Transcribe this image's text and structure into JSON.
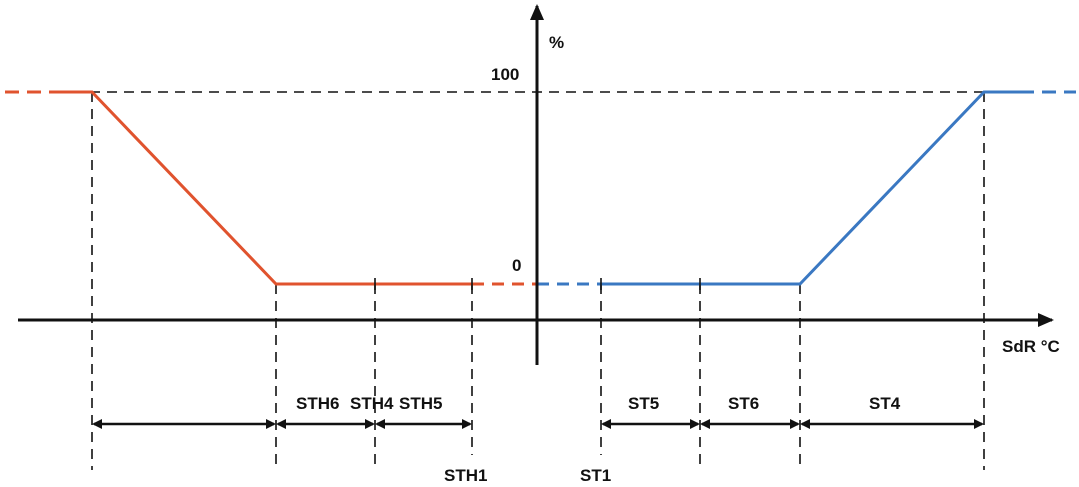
{
  "labels": {
    "y_unit": "%",
    "y_100": "100",
    "y_0": "0",
    "x_unit": "SdR °C",
    "sth6": "STH6",
    "sth4": "STH4",
    "sth5": "STH5",
    "st5": "ST5",
    "st6": "ST6",
    "st4": "ST4",
    "sth1": "STH1",
    "st1": "ST1"
  },
  "colors": {
    "heating": "#e0532e",
    "cooling": "#3a78c2",
    "axis": "#111111"
  }
}
